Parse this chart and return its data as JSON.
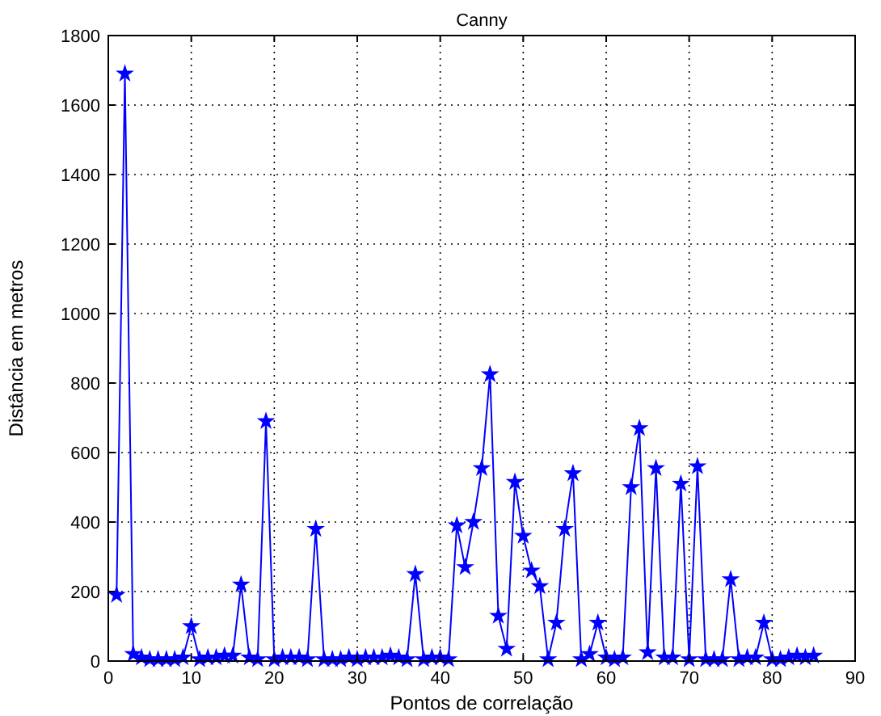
{
  "chart_data": {
    "type": "line",
    "title": "Canny",
    "xlabel": "Pontos de correlação",
    "ylabel": "Distância em metros",
    "x": [
      1,
      2,
      3,
      4,
      5,
      6,
      7,
      8,
      9,
      10,
      11,
      12,
      13,
      14,
      15,
      16,
      17,
      18,
      19,
      20,
      21,
      22,
      23,
      24,
      25,
      26,
      27,
      28,
      29,
      30,
      31,
      32,
      33,
      34,
      35,
      36,
      37,
      38,
      39,
      40,
      41,
      42,
      43,
      44,
      45,
      46,
      47,
      48,
      49,
      50,
      51,
      52,
      53,
      54,
      55,
      56,
      57,
      58,
      59,
      60,
      61,
      62,
      63,
      64,
      65,
      66,
      67,
      68,
      69,
      70,
      71,
      72,
      73,
      74,
      75,
      76,
      77,
      78,
      79,
      80,
      81,
      82,
      83,
      84,
      85
    ],
    "series": [
      {
        "color": "#0000ff",
        "values": [
          190,
          1690,
          20,
          10,
          5,
          5,
          5,
          5,
          10,
          100,
          5,
          10,
          10,
          15,
          15,
          220,
          10,
          5,
          690,
          5,
          10,
          10,
          10,
          5,
          380,
          5,
          5,
          5,
          10,
          5,
          10,
          10,
          10,
          15,
          10,
          5,
          250,
          5,
          10,
          10,
          5,
          390,
          270,
          400,
          555,
          825,
          130,
          35,
          515,
          360,
          260,
          215,
          5,
          110,
          380,
          540,
          5,
          20,
          110,
          10,
          5,
          10,
          500,
          670,
          25,
          555,
          10,
          10,
          510,
          5,
          560,
          5,
          5,
          5,
          235,
          5,
          10,
          10,
          110,
          5,
          5,
          10,
          15,
          10,
          15
        ]
      }
    ],
    "xlim": [
      0,
      90
    ],
    "xticks": [
      0,
      10,
      20,
      30,
      40,
      50,
      60,
      70,
      80,
      90
    ],
    "ylim": [
      0,
      1800
    ],
    "yticks": [
      0,
      200,
      400,
      600,
      800,
      1000,
      1200,
      1400,
      1600,
      1800
    ],
    "grid": true,
    "marker": "star",
    "line_style": "solid"
  }
}
